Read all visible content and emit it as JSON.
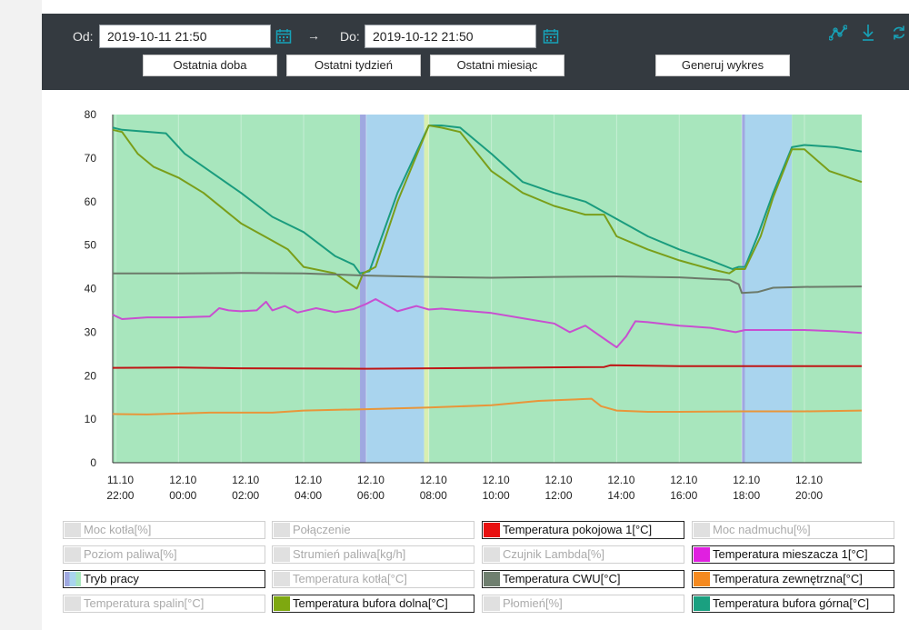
{
  "toolbar": {
    "from_label": "Od:",
    "from_value": "2019-10-11 21:50",
    "arrow": "→",
    "to_label": "Do:",
    "to_value": "2019-10-12 21:50",
    "btn_day": "Ostatnia doba",
    "btn_week": "Ostatni tydzień",
    "btn_month": "Ostatni miesiąc",
    "btn_generate": "Generuj wykres",
    "accent": "#17a2b8"
  },
  "chart_data": {
    "type": "line",
    "ylim": [
      0,
      80
    ],
    "yticks": [
      0,
      10,
      20,
      30,
      40,
      50,
      60,
      70,
      80
    ],
    "xlim": [
      -0.1,
      23.83
    ],
    "xticks": [
      {
        "t": 0,
        "d": "11.10",
        "h": "22:00"
      },
      {
        "t": 2,
        "d": "12.10",
        "h": "00:00"
      },
      {
        "t": 4,
        "d": "12.10",
        "h": "02:00"
      },
      {
        "t": 6,
        "d": "12.10",
        "h": "04:00"
      },
      {
        "t": 8,
        "d": "12.10",
        "h": "06:00"
      },
      {
        "t": 10,
        "d": "12.10",
        "h": "08:00"
      },
      {
        "t": 12,
        "d": "12.10",
        "h": "10:00"
      },
      {
        "t": 14,
        "d": "12.10",
        "h": "12:00"
      },
      {
        "t": 16,
        "d": "12.10",
        "h": "14:00"
      },
      {
        "t": 18,
        "d": "12.10",
        "h": "16:00"
      },
      {
        "t": 20,
        "d": "12.10",
        "h": "18:00"
      },
      {
        "t": 22,
        "d": "12.10",
        "h": "20:00"
      }
    ],
    "mode_bands": [
      {
        "start": -0.1,
        "end": 7.8,
        "color": "#a8e6bd"
      },
      {
        "start": 7.8,
        "end": 8.0,
        "color": "#9fa8e0"
      },
      {
        "start": 8.0,
        "end": 9.85,
        "color": "#a9d4ee"
      },
      {
        "start": 9.85,
        "end": 10.0,
        "color": "#d8efb0"
      },
      {
        "start": 10.0,
        "end": 20.0,
        "color": "#a8e6bd"
      },
      {
        "start": 20.0,
        "end": 20.1,
        "color": "#9fa8e0"
      },
      {
        "start": 20.1,
        "end": 21.6,
        "color": "#a9d4ee"
      },
      {
        "start": 21.6,
        "end": 23.83,
        "color": "#a8e6bd"
      }
    ],
    "series": [
      {
        "name": "Temperatura bufora górna[°C]",
        "color": "#1a9c7e",
        "x": [
          -0.1,
          0.2,
          1.6,
          2.2,
          3.0,
          4.0,
          5.0,
          6.0,
          7.0,
          7.6,
          7.8,
          8.1,
          9.0,
          10.0,
          10.4,
          11.0,
          12.0,
          13.0,
          14.0,
          15.0,
          16.0,
          17.0,
          18.0,
          19.0,
          19.7,
          19.9,
          20.1,
          20.5,
          21.0,
          21.6,
          22.0,
          23.0,
          23.83
        ],
        "y": [
          77,
          76.5,
          75.7,
          71,
          67,
          62,
          56.5,
          53,
          47.5,
          45.5,
          43.5,
          44,
          62,
          77.5,
          77.5,
          77,
          71,
          64.5,
          62,
          60,
          56,
          52,
          49,
          46.5,
          44.5,
          45,
          45,
          52,
          62,
          72.5,
          73,
          72.5,
          71.5
        ]
      },
      {
        "name": "Temperatura bufora dolna[°C]",
        "color": "#7a9e1a",
        "x": [
          -0.1,
          0.2,
          0.7,
          1.2,
          2.0,
          2.8,
          4.0,
          5.0,
          5.5,
          6.0,
          7.0,
          7.7,
          7.9,
          8.3,
          9.0,
          10.0,
          10.4,
          11.0,
          12.0,
          13.0,
          14.0,
          15.0,
          15.6,
          16.0,
          17.0,
          18.0,
          19.0,
          19.6,
          19.8,
          20.1,
          20.6,
          21.0,
          21.6,
          22.0,
          22.8,
          23.83
        ],
        "y": [
          76.5,
          76,
          71,
          68,
          65.5,
          62,
          55,
          51,
          49,
          45,
          43.5,
          40,
          43.5,
          45,
          60,
          77.5,
          77,
          76,
          67,
          62,
          59,
          57,
          57,
          52,
          49,
          46.5,
          44.5,
          43.5,
          44.5,
          44.5,
          52,
          61,
          72,
          72,
          67,
          64.5
        ]
      },
      {
        "name": "Temperatura CWU[°C]",
        "color": "#6c7a6a",
        "x": [
          -0.1,
          2.0,
          4.0,
          6.0,
          8.0,
          10.0,
          12.0,
          14.0,
          16.0,
          18.0,
          19.6,
          19.9,
          20.0,
          20.5,
          21.0,
          22.0,
          23.83
        ],
        "y": [
          43.5,
          43.5,
          43.6,
          43.5,
          43,
          42.7,
          42.5,
          42.7,
          42.8,
          42.6,
          42,
          41,
          39,
          39.2,
          40.2,
          40.4,
          40.5
        ]
      },
      {
        "name": "Temperatura mieszacza 1[°C]",
        "color": "#c84fd0",
        "x": [
          -0.1,
          0.2,
          1.0,
          2.0,
          3.0,
          3.3,
          3.6,
          4.0,
          4.5,
          4.8,
          5.0,
          5.4,
          5.8,
          6.4,
          7.0,
          7.6,
          8.0,
          8.3,
          9.0,
          9.6,
          10.0,
          10.4,
          11.0,
          12.0,
          13.0,
          14.0,
          14.5,
          15.0,
          15.3,
          15.7,
          16.0,
          16.3,
          16.6,
          17.0,
          18.0,
          19.0,
          19.8,
          20.1,
          21.0,
          22.0,
          23.0,
          23.83
        ],
        "y": [
          34,
          33,
          33.4,
          33.4,
          33.6,
          35.5,
          35,
          34.8,
          35,
          37,
          35,
          36,
          34.5,
          35.5,
          34.6,
          35.3,
          36.5,
          37.6,
          34.8,
          36,
          35.2,
          35.4,
          35,
          34.4,
          33.2,
          32,
          30,
          31.5,
          30,
          28,
          26.5,
          29,
          32.5,
          32.3,
          31.5,
          31,
          30,
          30.5,
          30.5,
          30.5,
          30.2,
          29.8
        ]
      },
      {
        "name": "Temperatura pokojowa 1[°C]",
        "color": "#c01515",
        "x": [
          -0.1,
          2.0,
          4.0,
          8.0,
          12.0,
          15.6,
          15.8,
          18.0,
          20.0,
          23.83
        ],
        "y": [
          21.8,
          21.9,
          21.7,
          21.6,
          21.8,
          22,
          22.4,
          22.2,
          22.2,
          22.2
        ]
      },
      {
        "name": "Temperatura zewnętrzna[°C]",
        "color": "#e8963a",
        "x": [
          -0.1,
          1.0,
          3.0,
          5.0,
          6.0,
          8.0,
          10.0,
          12.0,
          13.5,
          15.2,
          15.5,
          16.0,
          17.0,
          18.0,
          20.0,
          21.0,
          22.0,
          23.83
        ],
        "y": [
          11.2,
          11.1,
          11.5,
          11.5,
          12,
          12.3,
          12.7,
          13.2,
          14.2,
          14.7,
          13,
          12,
          11.7,
          11.7,
          11.8,
          11.8,
          11.8,
          12
        ]
      }
    ]
  },
  "legend": [
    {
      "label": "Moc kotła[%]",
      "color": "#e0e0e0",
      "on": false
    },
    {
      "label": "Połączenie",
      "color": "#e0e0e0",
      "on": false
    },
    {
      "label": "Temperatura pokojowa 1[°C]",
      "color": "#e81010",
      "on": true
    },
    {
      "label": "Moc nadmuchu[%]",
      "color": "#e0e0e0",
      "on": false
    },
    {
      "label": "Poziom paliwa[%]",
      "color": "#e0e0e0",
      "on": false
    },
    {
      "label": "Strumień paliwa[kg/h]",
      "color": "#e0e0e0",
      "on": false
    },
    {
      "label": "Czujnik Lambda[%]",
      "color": "#e0e0e0",
      "on": false
    },
    {
      "label": "Temperatura mieszacza 1[°C]",
      "color": "#e020e0",
      "on": true
    },
    {
      "label": "Tryb pracy",
      "color": "#8fc0e8",
      "on": true
    },
    {
      "label": "Temperatura kotła[°C]",
      "color": "#e0e0e0",
      "on": false
    },
    {
      "label": "Temperatura CWU[°C]",
      "color": "#6f7f6f",
      "on": true
    },
    {
      "label": "Temperatura zewnętrzna[°C]",
      "color": "#f58a1f",
      "on": true
    },
    {
      "label": "Temperatura spalin[°C]",
      "color": "#e0e0e0",
      "on": false
    },
    {
      "label": "Temperatura bufora dolna[°C]",
      "color": "#7ea810",
      "on": true
    },
    {
      "label": "Płomień[%]",
      "color": "#e0e0e0",
      "on": false
    },
    {
      "label": "Temperatura bufora górna[°C]",
      "color": "#1aa080",
      "on": true
    }
  ]
}
